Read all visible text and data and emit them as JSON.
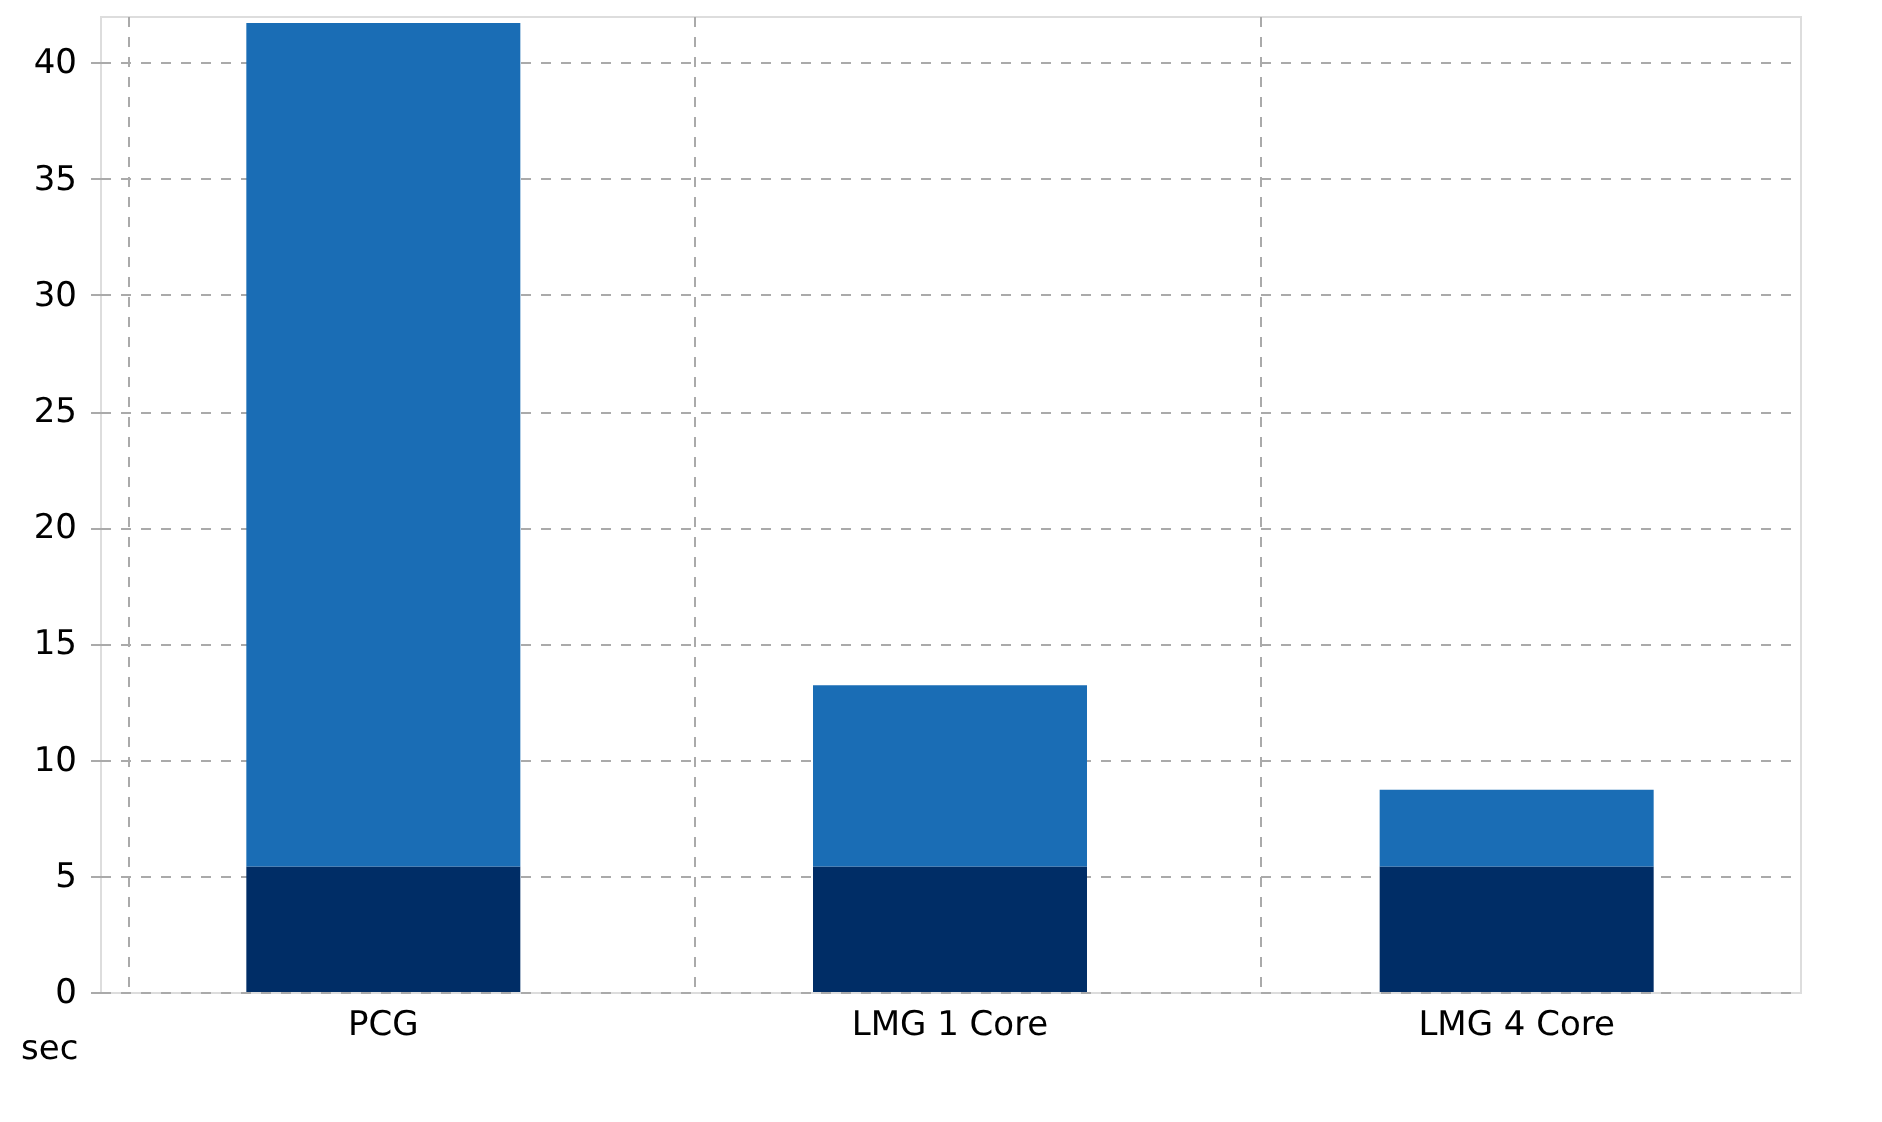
{
  "chart_data": {
    "type": "bar",
    "stacked": true,
    "ylabel": "sec",
    "categories": [
      "PCG",
      "LMG 1 Core",
      "LMG 4 Core"
    ],
    "series": [
      {
        "color": "#002d66",
        "values": [
          5.4,
          5.4,
          5.4
        ]
      },
      {
        "color": "#1a6db5",
        "values": [
          36.3,
          7.8,
          3.3
        ]
      }
    ],
    "ylim": [
      0,
      42
    ],
    "yticks": [
      0,
      5,
      10,
      15,
      20,
      25,
      30,
      35,
      40
    ],
    "grid": true,
    "legend": false
  }
}
